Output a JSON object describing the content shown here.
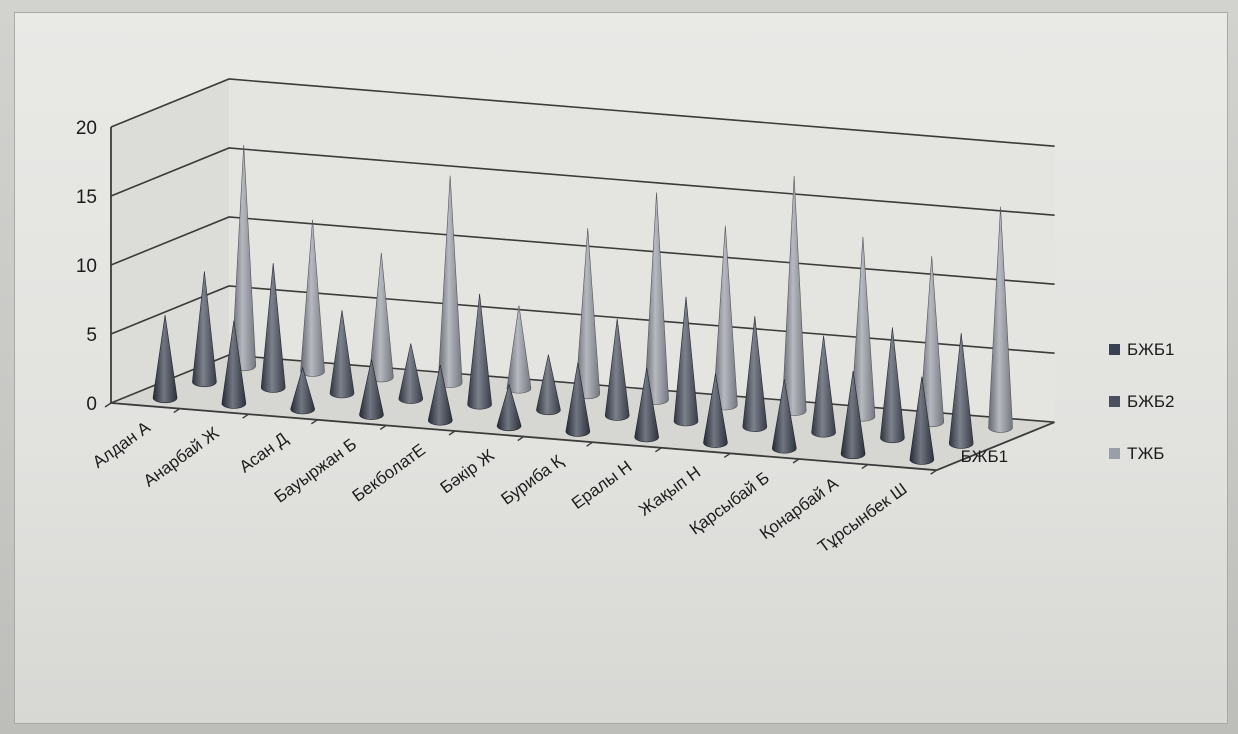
{
  "chart_data": {
    "type": "bar",
    "style": "3d-cone",
    "categories": [
      "Алдан А",
      "Анарбай Ж",
      "Асан Д",
      "Бауыржан Б",
      "БекболатЕ",
      "Бәкір Ж",
      "Буриба Қ",
      "Ералы Н",
      "Жақып Н",
      "Қарсыбай Б",
      "Қонарбай А",
      "Тұрсынбек Ш"
    ],
    "series": [
      {
        "name": "БЖБ1",
        "color": "#3a4150",
        "values": [
          6,
          6,
          3,
          4,
          4,
          3,
          5,
          5,
          5,
          5,
          6,
          6
        ]
      },
      {
        "name": "БЖБ2",
        "color": "#4a505e",
        "values": [
          8,
          9,
          6,
          4,
          8,
          4,
          7,
          9,
          8,
          7,
          8,
          8
        ]
      },
      {
        "name": "ТЖБ",
        "color": "#9a9ea6",
        "values": [
          16,
          11,
          9,
          15,
          6,
          12,
          15,
          13,
          17,
          13,
          12,
          16
        ]
      }
    ],
    "ylim": [
      0,
      20
    ],
    "yticks": [
      "0",
      "5",
      "10",
      "15",
      "20"
    ],
    "depth_axis_label": "БЖБ1",
    "gridlines": true,
    "legend_position": "right"
  }
}
